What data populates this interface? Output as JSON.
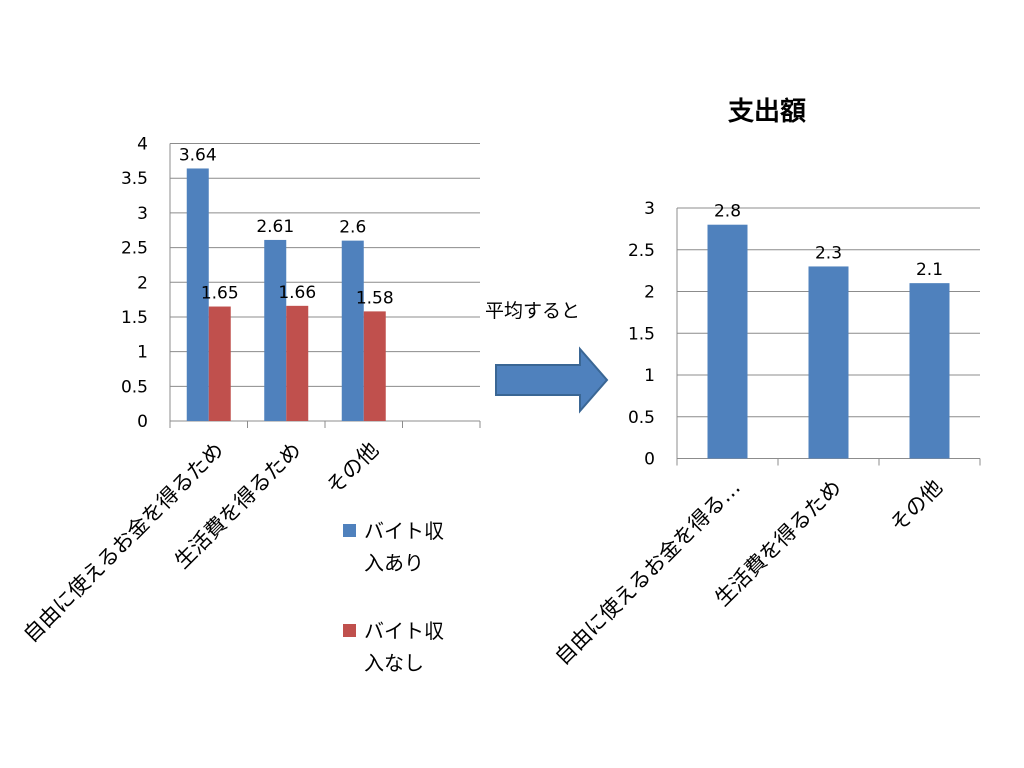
{
  "note_text": "平均すると",
  "legend": [
    {
      "line1": "バイト収",
      "line2": "入あり",
      "color": "#4F81BD"
    },
    {
      "line1": "バイト収",
      "line2": "入なし",
      "color": "#C0504D"
    }
  ],
  "chart_data": [
    {
      "type": "bar",
      "title": "",
      "categories": [
        "自由に使えるお金を得るため",
        "生活費を得るため",
        "その他"
      ],
      "category_labels": [
        "自由に使えるお金を得るため",
        "生活費を得るため",
        "その他"
      ],
      "series": [
        {
          "name": "バイト収入あり",
          "values": [
            3.64,
            2.61,
            2.6
          ],
          "labels": [
            "3.64",
            "2.61",
            "2.6"
          ],
          "color": "#4F81BD"
        },
        {
          "name": "バイト収入なし",
          "values": [
            1.65,
            1.66,
            1.58
          ],
          "labels": [
            "1.65",
            "1.66",
            "1.58"
          ],
          "color": "#C0504D"
        }
      ],
      "ylim": [
        0,
        4
      ],
      "yticks": [
        "0",
        "0.5",
        "1",
        "1.5",
        "2",
        "2.5",
        "3",
        "3.5",
        "4"
      ],
      "grid": true,
      "legend_position": "bottom-right"
    },
    {
      "type": "bar",
      "title": "支出額",
      "categories": [
        "自由に使えるお金を得るため",
        "生活費を得るため",
        "その他"
      ],
      "category_labels": [
        "自由に使えるお金を得る…",
        "生活費を得るため",
        "その他"
      ],
      "series": [
        {
          "values": [
            2.8,
            2.3,
            2.1
          ],
          "labels": [
            "2.8",
            "2.3",
            "2.1"
          ],
          "color": "#4F81BD"
        }
      ],
      "ylim": [
        0,
        3
      ],
      "yticks": [
        "0",
        "0.5",
        "1",
        "1.5",
        "2",
        "2.5",
        "3"
      ],
      "grid": true,
      "legend_position": "none"
    }
  ]
}
